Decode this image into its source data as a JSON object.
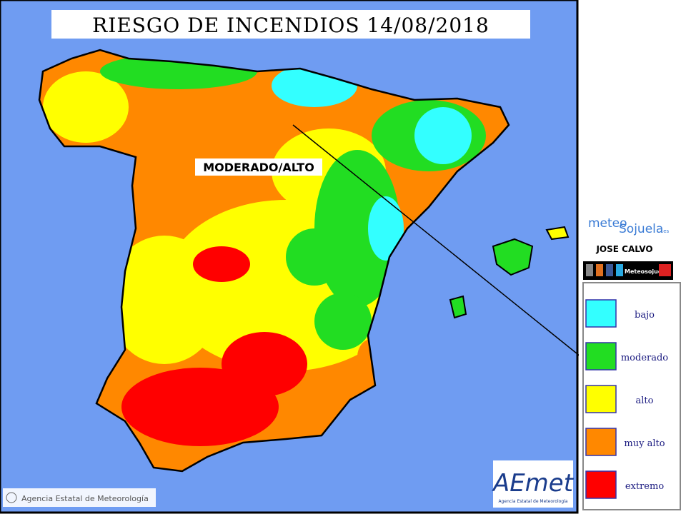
{
  "title": "RIESGO DE INCENDIOS 14/08/2018",
  "annotation": "MODERADO/ALTO",
  "branding": {
    "meteo": "meteo",
    "sojuela": "Sojuela",
    "domain": ".es",
    "author": "JOSE CALVO",
    "social": "Meteosojuela"
  },
  "legend": [
    {
      "label": "bajo",
      "color": "#33ffff"
    },
    {
      "label": "moderado",
      "color": "#22dd22"
    },
    {
      "label": "alto",
      "color": "#ffff00"
    },
    {
      "label": "muy alto",
      "color": "#ff8800"
    },
    {
      "label": "extremo",
      "color": "#ff0000"
    }
  ],
  "credits": {
    "agency": "Agencia Estatal de Meteorología",
    "logo": "AEmet",
    "logo_caption": "Agencia Estatal de Meteorología"
  }
}
